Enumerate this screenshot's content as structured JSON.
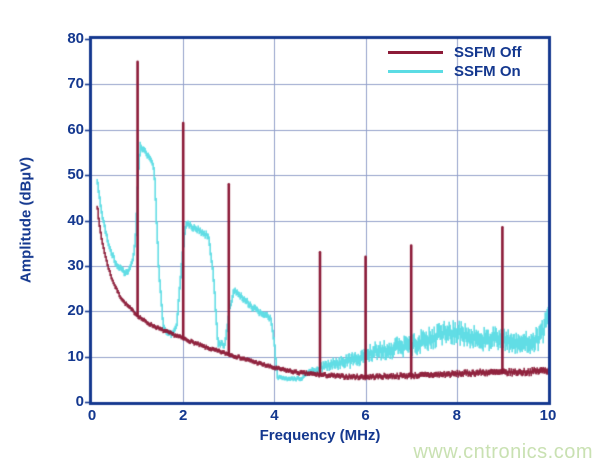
{
  "watermark": {
    "text": "www.cntronics.com",
    "color": "#c9e1b2"
  },
  "chart_data": {
    "type": "line",
    "title": "",
    "xlabel": "Frequency (MHz)",
    "ylabel": "Amplitude (dBµV)",
    "xlim": [
      0,
      10
    ],
    "ylim": [
      0,
      80
    ],
    "x_ticks": [
      0,
      2,
      4,
      6,
      8,
      10
    ],
    "y_ticks": [
      0,
      10,
      20,
      30,
      40,
      50,
      60,
      70,
      80
    ],
    "grid": true,
    "legend_position": "top-right-inside",
    "colors": {
      "axis": "#14388f",
      "grid": "#93a1ca",
      "background": "#ffffff"
    },
    "series": [
      {
        "name": "SSFM Off",
        "color": "#8c1b38",
        "baseline": [
          [
            0.1,
            44
          ],
          [
            0.15,
            39
          ],
          [
            0.2,
            36
          ],
          [
            0.3,
            31.5
          ],
          [
            0.4,
            28
          ],
          [
            0.5,
            25.5
          ],
          [
            0.6,
            23.5
          ],
          [
            0.7,
            22
          ],
          [
            0.8,
            21
          ],
          [
            1.0,
            19
          ],
          [
            1.2,
            17.5
          ],
          [
            1.5,
            16
          ],
          [
            2.0,
            14
          ],
          [
            2.5,
            12
          ],
          [
            3.0,
            10.5
          ],
          [
            3.5,
            9
          ],
          [
            4.0,
            7.5
          ],
          [
            4.5,
            6.5
          ],
          [
            5.0,
            6
          ],
          [
            5.5,
            5.6
          ],
          [
            6.0,
            5.5
          ],
          [
            6.5,
            5.7
          ],
          [
            7.0,
            5.8
          ],
          [
            7.5,
            6
          ],
          [
            8.0,
            6.2
          ],
          [
            8.5,
            6.5
          ],
          [
            9.0,
            6.5
          ],
          [
            9.5,
            6.6
          ],
          [
            10.0,
            7
          ]
        ],
        "spikes": [
          [
            1.0,
            75
          ],
          [
            2.0,
            61.5
          ],
          [
            3.0,
            48
          ],
          [
            5.0,
            33
          ],
          [
            6.0,
            32
          ],
          [
            7.0,
            34.5
          ],
          [
            9.0,
            38.5
          ]
        ],
        "noise_band_db": [
          [
            0.1,
            0.5
          ],
          [
            4.0,
            0.5
          ],
          [
            7.0,
            0.7
          ],
          [
            10.0,
            0.9
          ]
        ]
      },
      {
        "name": "SSFM On",
        "color": "#5bdce4",
        "baseline": [
          [
            0.1,
            49
          ],
          [
            0.15,
            45.5
          ],
          [
            0.2,
            42
          ],
          [
            0.3,
            37
          ],
          [
            0.4,
            33.5
          ],
          [
            0.5,
            31
          ],
          [
            0.6,
            29.5
          ],
          [
            0.7,
            28.5
          ],
          [
            0.8,
            29
          ],
          [
            0.9,
            32
          ],
          [
            0.95,
            37
          ],
          [
            1.0,
            50
          ],
          [
            1.05,
            56.5
          ],
          [
            1.15,
            55.5
          ],
          [
            1.25,
            54
          ],
          [
            1.35,
            51.5
          ],
          [
            1.45,
            30
          ],
          [
            1.55,
            16.5
          ],
          [
            1.65,
            15
          ],
          [
            1.75,
            15
          ],
          [
            1.85,
            17
          ],
          [
            1.95,
            30
          ],
          [
            2.05,
            39.5
          ],
          [
            2.2,
            38.5
          ],
          [
            2.4,
            37.5
          ],
          [
            2.55,
            36.5
          ],
          [
            2.65,
            28
          ],
          [
            2.75,
            13
          ],
          [
            2.9,
            12.5
          ],
          [
            3.0,
            20
          ],
          [
            3.1,
            24.5
          ],
          [
            3.3,
            23
          ],
          [
            3.5,
            21
          ],
          [
            3.7,
            19.5
          ],
          [
            3.9,
            18.5
          ],
          [
            3.98,
            14
          ],
          [
            4.05,
            5.5
          ],
          [
            4.3,
            5
          ],
          [
            4.6,
            5.2
          ],
          [
            4.75,
            6.5
          ],
          [
            5.0,
            7.5
          ],
          [
            5.3,
            8.5
          ],
          [
            5.6,
            9
          ],
          [
            5.9,
            9.5
          ],
          [
            6.1,
            11
          ],
          [
            6.4,
            11.5
          ],
          [
            6.7,
            12
          ],
          [
            7.0,
            12.5
          ],
          [
            7.3,
            13.5
          ],
          [
            7.6,
            15
          ],
          [
            7.9,
            15.5
          ],
          [
            8.1,
            15
          ],
          [
            8.4,
            14
          ],
          [
            8.7,
            14
          ],
          [
            9.0,
            13.5
          ],
          [
            9.3,
            13
          ],
          [
            9.6,
            13.5
          ],
          [
            9.85,
            14.5
          ],
          [
            10.0,
            19
          ]
        ],
        "spikes": [],
        "noise_band_db": [
          [
            0.1,
            0.9
          ],
          [
            3.9,
            0.9
          ],
          [
            4.05,
            0.5
          ],
          [
            4.6,
            0.5
          ],
          [
            5.2,
            1.4
          ],
          [
            6.2,
            2.2
          ],
          [
            7.2,
            2.8
          ],
          [
            10.0,
            3.0
          ]
        ]
      }
    ]
  }
}
